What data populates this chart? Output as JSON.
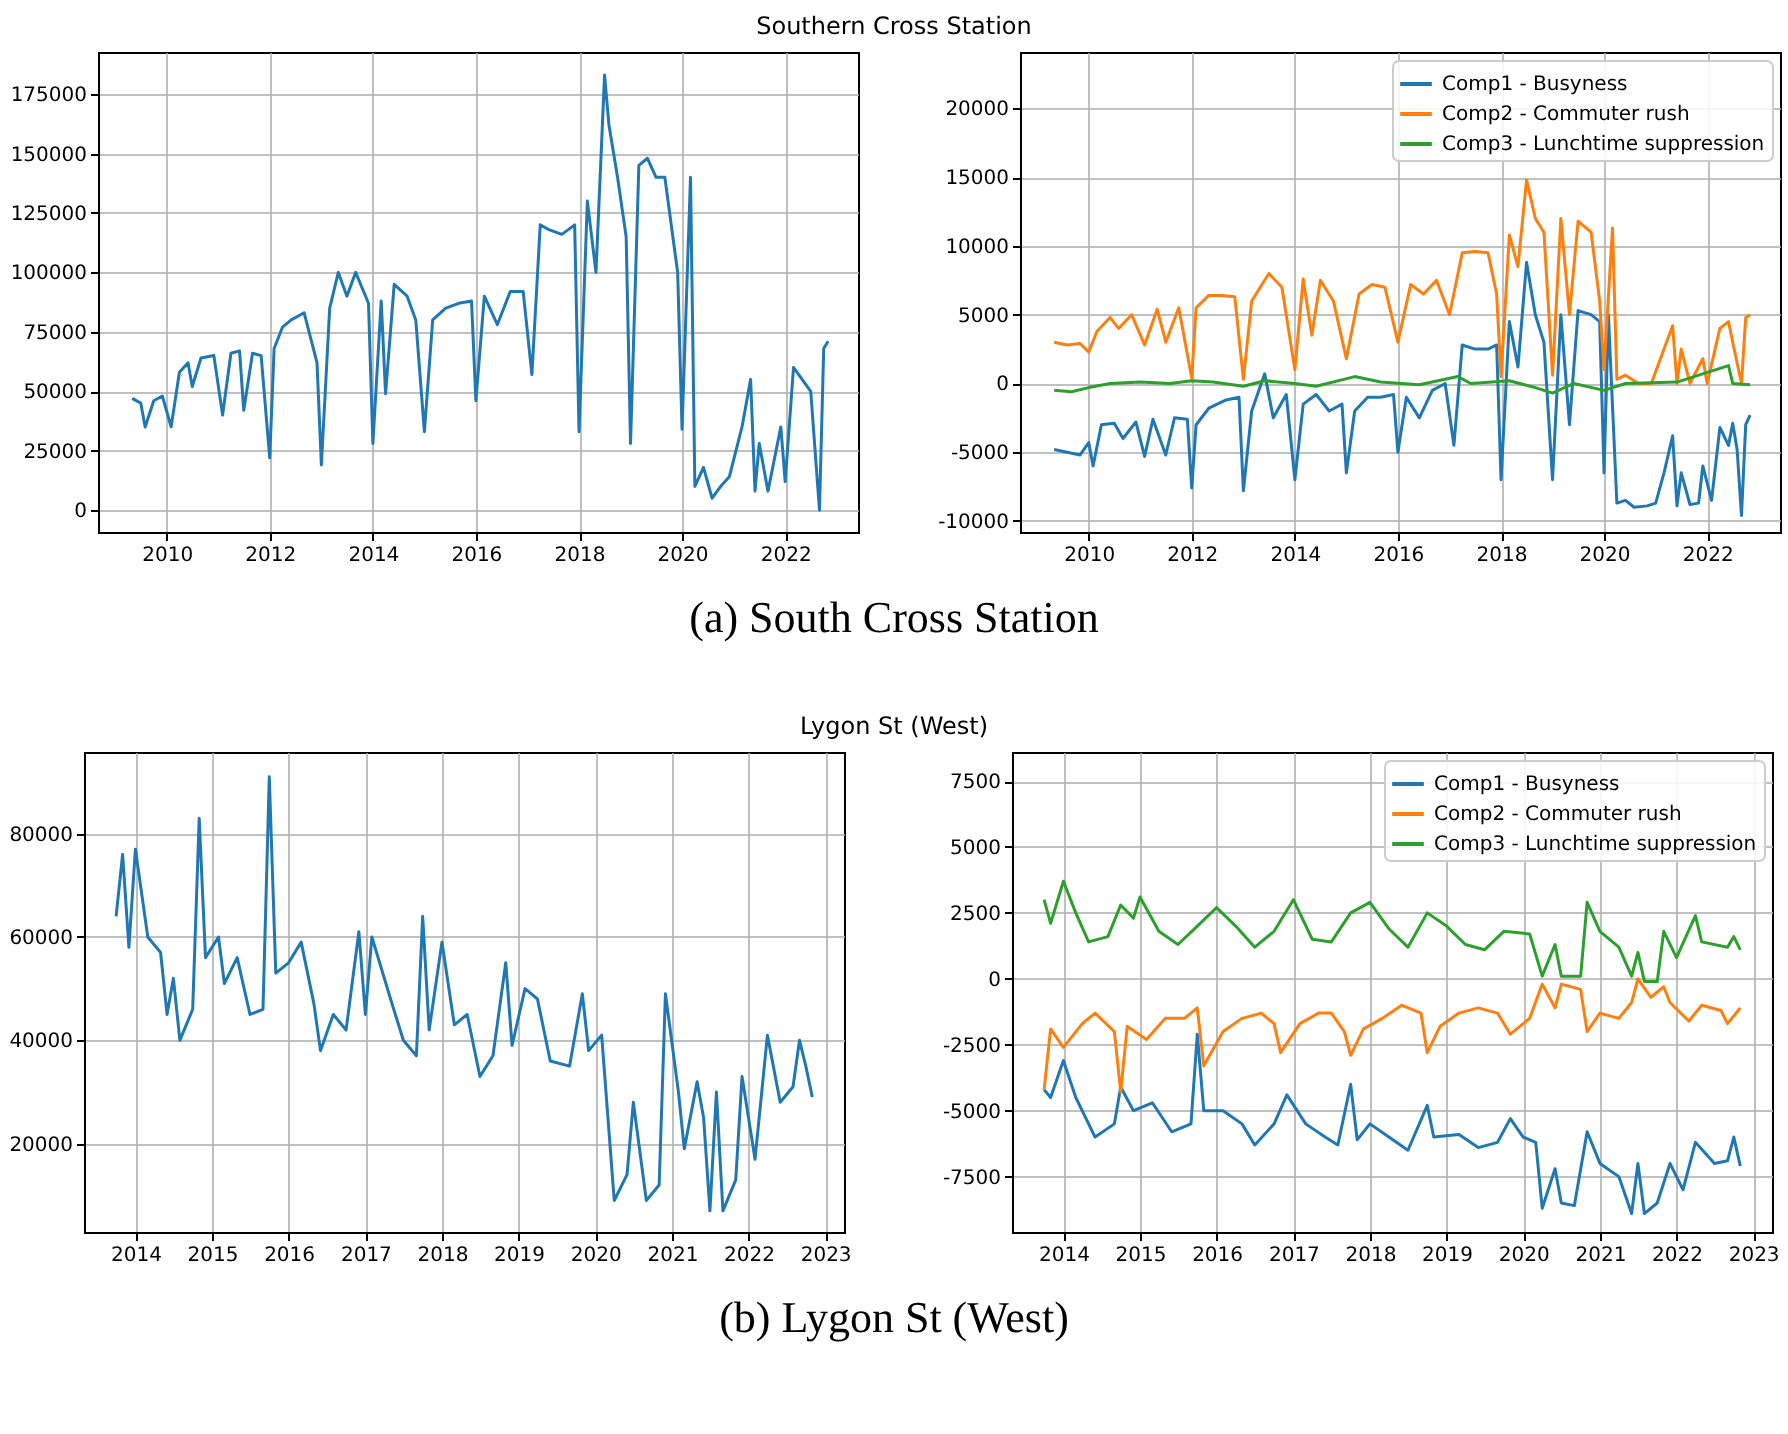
{
  "chart_data": [
    {
      "type": "line",
      "title": "Southern Cross Station",
      "annotations": [
        "(a) South Cross Station"
      ],
      "color": "#1f77b4",
      "grid": true,
      "line_style": "solid",
      "xlim": [
        "2008-09",
        "2023-06"
      ],
      "xticks": [
        "2010",
        "2012",
        "2014",
        "2016",
        "2018",
        "2020",
        "2022"
      ],
      "ylim": [
        -9200,
        192700
      ],
      "yticks": [
        0,
        25000,
        50000,
        75000,
        100000,
        125000,
        150000,
        175000
      ],
      "x": [
        "2009-05",
        "2009-07",
        "2009-08",
        "2009-10",
        "2009-12",
        "2010-02",
        "2010-04",
        "2010-06",
        "2010-07",
        "2010-09",
        "2010-12",
        "2011-02",
        "2011-04",
        "2011-06",
        "2011-07",
        "2011-09",
        "2011-11",
        "2012-01",
        "2012-02",
        "2012-04",
        "2012-06",
        "2012-09",
        "2012-12",
        "2013-01",
        "2013-03",
        "2013-05",
        "2013-07",
        "2013-09",
        "2013-12",
        "2014-01",
        "2014-03",
        "2014-04",
        "2014-06",
        "2014-09",
        "2014-11",
        "2015-01",
        "2015-03",
        "2015-06",
        "2015-09",
        "2015-12",
        "2016-01",
        "2016-03",
        "2016-06",
        "2016-09",
        "2016-12",
        "2017-02",
        "2017-04",
        "2017-06",
        "2017-09",
        "2017-12",
        "2018-01",
        "2018-03",
        "2018-05",
        "2018-07",
        "2018-08",
        "2018-10",
        "2018-12",
        "2019-01",
        "2019-03",
        "2019-05",
        "2019-07",
        "2019-09",
        "2019-12",
        "2020-01",
        "2020-03",
        "2020-04",
        "2020-06",
        "2020-08",
        "2020-10",
        "2020-12",
        "2021-03",
        "2021-05",
        "2021-06",
        "2021-07",
        "2021-09",
        "2021-12",
        "2022-01",
        "2022-03",
        "2022-05",
        "2022-07",
        "2022-09",
        "2022-10",
        "2022-11"
      ],
      "values": [
        47000,
        45000,
        35000,
        46000,
        48000,
        35000,
        58000,
        62000,
        52000,
        64000,
        65000,
        40000,
        66000,
        67000,
        42000,
        66000,
        65000,
        22000,
        68000,
        77000,
        80000,
        83000,
        62000,
        19000,
        85000,
        100000,
        90000,
        100000,
        87000,
        28000,
        88000,
        49000,
        95000,
        90000,
        80000,
        33000,
        80000,
        85000,
        87000,
        88000,
        46000,
        90000,
        78000,
        92000,
        92000,
        57000,
        120000,
        118000,
        116000,
        120000,
        33000,
        130000,
        100000,
        183000,
        162000,
        140000,
        115000,
        28000,
        145000,
        148000,
        140000,
        140000,
        100000,
        34000,
        140000,
        10000,
        18000,
        5000,
        10000,
        14000,
        35000,
        55000,
        8000,
        28000,
        8000,
        35000,
        12000,
        60000,
        55000,
        50000,
        0,
        68000,
        71000
      ]
    },
    {
      "type": "line",
      "grid": true,
      "legend": "top right",
      "line_style": "solid",
      "xlim": [
        "2008-09",
        "2023-06"
      ],
      "xticks": [
        "2010",
        "2012",
        "2014",
        "2016",
        "2018",
        "2020",
        "2022"
      ],
      "ylim": [
        -10800,
        24100
      ],
      "yticks": [
        -10000,
        -5000,
        0,
        5000,
        10000,
        15000,
        20000
      ],
      "series": [
        {
          "name": "Comp1 - Busyness",
          "color": "#1f77b4",
          "x": [
            "2009-05",
            "2009-08",
            "2009-11",
            "2010-01",
            "2010-02",
            "2010-04",
            "2010-07",
            "2010-09",
            "2010-12",
            "2011-02",
            "2011-04",
            "2011-07",
            "2011-09",
            "2011-12",
            "2012-01",
            "2012-02",
            "2012-05",
            "2012-09",
            "2012-12",
            "2013-01",
            "2013-03",
            "2013-06",
            "2013-08",
            "2013-11",
            "2014-01",
            "2014-03",
            "2014-06",
            "2014-09",
            "2014-12",
            "2015-01",
            "2015-03",
            "2015-06",
            "2015-09",
            "2015-12",
            "2016-01",
            "2016-03",
            "2016-06",
            "2016-09",
            "2016-12",
            "2017-02",
            "2017-04",
            "2017-07",
            "2017-10",
            "2017-12",
            "2018-01",
            "2018-03",
            "2018-05",
            "2018-07",
            "2018-09",
            "2018-11",
            "2019-01",
            "2019-03",
            "2019-05",
            "2019-07",
            "2019-10",
            "2019-12",
            "2020-01",
            "2020-02",
            "2020-04",
            "2020-06",
            "2020-08",
            "2020-11",
            "2021-01",
            "2021-03",
            "2021-05",
            "2021-06",
            "2021-07",
            "2021-09",
            "2021-11",
            "2021-12",
            "2022-02",
            "2022-04",
            "2022-06",
            "2022-07",
            "2022-08",
            "2022-09",
            "2022-10",
            "2022-11"
          ],
          "values": [
            -4800,
            -5000,
            -5200,
            -4300,
            -6000,
            -3000,
            -2900,
            -4000,
            -2800,
            -5300,
            -2600,
            -5200,
            -2500,
            -2600,
            -7600,
            -3000,
            -1800,
            -1200,
            -1000,
            -7800,
            -2000,
            700,
            -2500,
            -800,
            -7000,
            -1500,
            -800,
            -2000,
            -1500,
            -6500,
            -2000,
            -1000,
            -1000,
            -800,
            -5000,
            -1000,
            -2500,
            -500,
            0,
            -4500,
            2800,
            2500,
            2500,
            2800,
            -7000,
            4500,
            1200,
            8800,
            5000,
            3000,
            -7000,
            5000,
            -3000,
            5300,
            5000,
            4500,
            -6500,
            5000,
            -8700,
            -8500,
            -9000,
            -8900,
            -8700,
            -6500,
            -3800,
            -8900,
            -6500,
            -8800,
            -8700,
            -6000,
            -8500,
            -3200,
            -4500,
            -2900,
            -4800,
            -9600,
            -3000,
            -2300
          ]
        },
        {
          "name": "Comp2 - Commuter rush",
          "color": "#ff7f0e",
          "x": [
            "2009-05",
            "2009-08",
            "2009-11",
            "2010-01",
            "2010-03",
            "2010-06",
            "2010-08",
            "2010-11",
            "2011-02",
            "2011-05",
            "2011-07",
            "2011-10",
            "2012-01",
            "2012-02",
            "2012-05",
            "2012-08",
            "2012-11",
            "2013-01",
            "2013-03",
            "2013-07",
            "2013-10",
            "2014-01",
            "2014-03",
            "2014-05",
            "2014-07",
            "2014-10",
            "2015-01",
            "2015-04",
            "2015-07",
            "2015-10",
            "2016-01",
            "2016-04",
            "2016-07",
            "2016-10",
            "2017-01",
            "2017-04",
            "2017-07",
            "2017-10",
            "2017-12",
            "2018-01",
            "2018-03",
            "2018-05",
            "2018-07",
            "2018-09",
            "2018-11",
            "2019-01",
            "2019-03",
            "2019-05",
            "2019-07",
            "2019-10",
            "2019-12",
            "2020-01",
            "2020-03",
            "2020-04",
            "2020-06",
            "2020-09",
            "2020-12",
            "2021-03",
            "2021-05",
            "2021-06",
            "2021-07",
            "2021-09",
            "2021-12",
            "2022-01",
            "2022-04",
            "2022-06",
            "2022-07",
            "2022-09",
            "2022-10",
            "2022-11"
          ],
          "values": [
            3000,
            2800,
            2900,
            2300,
            3800,
            4800,
            4000,
            5000,
            2800,
            5400,
            3000,
            5500,
            400,
            5500,
            6400,
            6400,
            6300,
            300,
            6000,
            8000,
            7000,
            1000,
            7600,
            3500,
            7500,
            6000,
            1800,
            6500,
            7200,
            7000,
            3000,
            7200,
            6500,
            7500,
            5000,
            9500,
            9600,
            9500,
            6500,
            500,
            10800,
            8500,
            14800,
            12000,
            11000,
            600,
            12000,
            5000,
            11800,
            11000,
            6000,
            1000,
            11300,
            300,
            600,
            0,
            0,
            2500,
            4200,
            0,
            2500,
            0,
            1800,
            0,
            4000,
            4500,
            3000,
            0,
            4800,
            5000
          ]
        },
        {
          "name": "Comp3 - Lunchtime suppression",
          "color": "#2ca02c",
          "x": [
            "2009-05",
            "2009-09",
            "2010-01",
            "2010-06",
            "2011-01",
            "2011-08",
            "2012-01",
            "2012-06",
            "2013-01",
            "2013-06",
            "2014-01",
            "2014-06",
            "2015-03",
            "2015-09",
            "2016-06",
            "2017-03",
            "2017-06",
            "2018-03",
            "2018-09",
            "2019-01",
            "2019-06",
            "2020-01",
            "2020-06",
            "2021-06",
            "2022-06",
            "2022-07",
            "2022-11"
          ],
          "values": [
            -500,
            -600,
            -300,
            0,
            100,
            0,
            200,
            100,
            -200,
            200,
            0,
            -200,
            500,
            100,
            -100,
            500,
            0,
            200,
            -300,
            -700,
            0,
            -500,
            0,
            100,
            1300,
            0,
            -100
          ]
        }
      ]
    },
    {
      "type": "line",
      "title": "Lygon St (West)",
      "annotations": [
        "(b) Lygon St (West)"
      ],
      "color": "#1f77b4",
      "grid": true,
      "line_style": "solid",
      "xlim": [
        "2013-05",
        "2023-04"
      ],
      "xticks": [
        "2014",
        "2015",
        "2016",
        "2017",
        "2018",
        "2019",
        "2020",
        "2021",
        "2022",
        "2023"
      ],
      "ylim": [
        2900,
        95800
      ],
      "yticks": [
        20000,
        40000,
        60000,
        80000
      ],
      "x": [
        "2013-10",
        "2013-11",
        "2013-12",
        "2014-01",
        "2014-03",
        "2014-05",
        "2014-06",
        "2014-07",
        "2014-08",
        "2014-10",
        "2014-11",
        "2014-12",
        "2015-02",
        "2015-03",
        "2015-05",
        "2015-07",
        "2015-09",
        "2015-10",
        "2015-11",
        "2016-01",
        "2016-03",
        "2016-05",
        "2016-06",
        "2016-08",
        "2016-10",
        "2016-12",
        "2017-01",
        "2017-02",
        "2017-05",
        "2017-07",
        "2017-09",
        "2017-10",
        "2017-11",
        "2018-01",
        "2018-03",
        "2018-05",
        "2018-07",
        "2018-09",
        "2018-11",
        "2018-12",
        "2019-02",
        "2019-04",
        "2019-06",
        "2019-09",
        "2019-11",
        "2019-12",
        "2020-02",
        "2020-04",
        "2020-06",
        "2020-07",
        "2020-09",
        "2020-11",
        "2020-12",
        "2021-02",
        "2021-03",
        "2021-05",
        "2021-06",
        "2021-07",
        "2021-08",
        "2021-09",
        "2021-11",
        "2021-12",
        "2022-02",
        "2022-04",
        "2022-06",
        "2022-08",
        "2022-09",
        "2022-10",
        "2022-11"
      ],
      "values": [
        64000,
        76000,
        58000,
        77000,
        60000,
        57000,
        45000,
        52000,
        40000,
        46000,
        83000,
        56000,
        60000,
        51000,
        56000,
        45000,
        46000,
        91000,
        53000,
        55000,
        59000,
        47000,
        38000,
        45000,
        42000,
        61000,
        45000,
        60000,
        48000,
        40000,
        37000,
        64000,
        42000,
        59000,
        43000,
        45000,
        33000,
        37000,
        55000,
        39000,
        50000,
        48000,
        36000,
        35000,
        49000,
        38000,
        41000,
        9000,
        14000,
        28000,
        9000,
        12000,
        49000,
        30000,
        19000,
        32000,
        25000,
        7000,
        30000,
        7000,
        13000,
        33000,
        17000,
        41000,
        28000,
        31000,
        40000,
        35000,
        29000
      ]
    },
    {
      "type": "line",
      "grid": true,
      "legend": "top right",
      "line_style": "solid",
      "xlim": [
        "2013-05",
        "2023-04"
      ],
      "xticks": [
        "2014",
        "2015",
        "2016",
        "2017",
        "2018",
        "2019",
        "2020",
        "2021",
        "2022",
        "2023"
      ],
      "ylim": [
        -9600,
        8600
      ],
      "yticks": [
        -7500,
        -5000,
        -2500,
        0,
        2500,
        5000,
        7500
      ],
      "series": [
        {
          "name": "Comp1 - Busyness",
          "color": "#1f77b4",
          "x": [
            "2013-10",
            "2013-11",
            "2014-01",
            "2014-03",
            "2014-06",
            "2014-09",
            "2014-10",
            "2014-12",
            "2015-03",
            "2015-06",
            "2015-09",
            "2015-10",
            "2015-11",
            "2016-02",
            "2016-05",
            "2016-07",
            "2016-10",
            "2016-12",
            "2017-03",
            "2017-06",
            "2017-08",
            "2017-10",
            "2017-11",
            "2018-01",
            "2018-04",
            "2018-07",
            "2018-10",
            "2018-11",
            "2019-03",
            "2019-06",
            "2019-09",
            "2019-11",
            "2020-01",
            "2020-03",
            "2020-04",
            "2020-06",
            "2020-07",
            "2020-09",
            "2020-11",
            "2021-01",
            "2021-04",
            "2021-06",
            "2021-07",
            "2021-08",
            "2021-10",
            "2021-12",
            "2022-02",
            "2022-04",
            "2022-07",
            "2022-09",
            "2022-10",
            "2022-11"
          ],
          "values": [
            -4200,
            -4500,
            -3100,
            -4500,
            -6000,
            -5500,
            -4100,
            -5000,
            -4700,
            -5800,
            -5500,
            -2100,
            -5000,
            -5000,
            -5500,
            -6300,
            -5500,
            -4400,
            -5500,
            -6000,
            -6300,
            -4000,
            -6100,
            -5500,
            -6000,
            -6500,
            -4800,
            -6000,
            -5900,
            -6400,
            -6200,
            -5300,
            -6000,
            -6200,
            -8700,
            -7200,
            -8500,
            -8600,
            -5800,
            -7000,
            -7500,
            -8900,
            -7000,
            -8900,
            -8500,
            -7000,
            -8000,
            -6200,
            -7000,
            -6900,
            -6000,
            -7100
          ]
        },
        {
          "name": "Comp2 - Commuter rush",
          "color": "#ff7f0e",
          "x": [
            "2013-10",
            "2013-11",
            "2014-01",
            "2014-04",
            "2014-06",
            "2014-09",
            "2014-10",
            "2014-11",
            "2015-02",
            "2015-05",
            "2015-08",
            "2015-10",
            "2015-11",
            "2016-02",
            "2016-05",
            "2016-08",
            "2016-10",
            "2016-11",
            "2017-02",
            "2017-05",
            "2017-07",
            "2017-09",
            "2017-10",
            "2017-12",
            "2018-03",
            "2018-06",
            "2018-09",
            "2018-10",
            "2018-12",
            "2019-03",
            "2019-06",
            "2019-09",
            "2019-11",
            "2020-02",
            "2020-04",
            "2020-06",
            "2020-07",
            "2020-10",
            "2020-11",
            "2021-01",
            "2021-04",
            "2021-06",
            "2021-07",
            "2021-09",
            "2021-11",
            "2021-12",
            "2022-03",
            "2022-05",
            "2022-08",
            "2022-09",
            "2022-11"
          ],
          "values": [
            -4200,
            -1900,
            -2600,
            -1700,
            -1300,
            -2000,
            -4300,
            -1800,
            -2300,
            -1500,
            -1500,
            -1100,
            -3300,
            -2000,
            -1500,
            -1300,
            -1700,
            -2800,
            -1700,
            -1300,
            -1300,
            -2000,
            -2900,
            -1900,
            -1500,
            -1000,
            -1300,
            -2800,
            -1800,
            -1300,
            -1100,
            -1300,
            -2100,
            -1500,
            -200,
            -1100,
            -200,
            -400,
            -2000,
            -1300,
            -1500,
            -900,
            0,
            -700,
            -300,
            -900,
            -1600,
            -1000,
            -1200,
            -1700,
            -1100
          ]
        },
        {
          "name": "Comp3 - Lunchtime suppression",
          "color": "#2ca02c",
          "x": [
            "2013-10",
            "2013-11",
            "2014-01",
            "2014-03",
            "2014-05",
            "2014-08",
            "2014-10",
            "2014-12",
            "2015-01",
            "2015-04",
            "2015-07",
            "2015-10",
            "2016-01",
            "2016-04",
            "2016-07",
            "2016-10",
            "2017-01",
            "2017-04",
            "2017-07",
            "2017-10",
            "2018-01",
            "2018-04",
            "2018-07",
            "2018-10",
            "2019-01",
            "2019-04",
            "2019-07",
            "2019-10",
            "2020-02",
            "2020-04",
            "2020-06",
            "2020-07",
            "2020-10",
            "2020-11",
            "2021-01",
            "2021-04",
            "2021-06",
            "2021-07",
            "2021-08",
            "2021-10",
            "2021-11",
            "2022-01",
            "2022-04",
            "2022-05",
            "2022-09",
            "2022-10",
            "2022-11"
          ],
          "values": [
            3000,
            2100,
            3700,
            2500,
            1400,
            1600,
            2800,
            2300,
            3100,
            1800,
            1300,
            2000,
            2700,
            2000,
            1200,
            1800,
            3000,
            1500,
            1400,
            2500,
            2900,
            1900,
            1200,
            2500,
            2000,
            1300,
            1100,
            1800,
            1700,
            100,
            1300,
            100,
            100,
            2900,
            1800,
            1200,
            100,
            1000,
            -100,
            -100,
            1800,
            800,
            2400,
            1400,
            1200,
            1600,
            1100
          ]
        }
      ]
    }
  ]
}
